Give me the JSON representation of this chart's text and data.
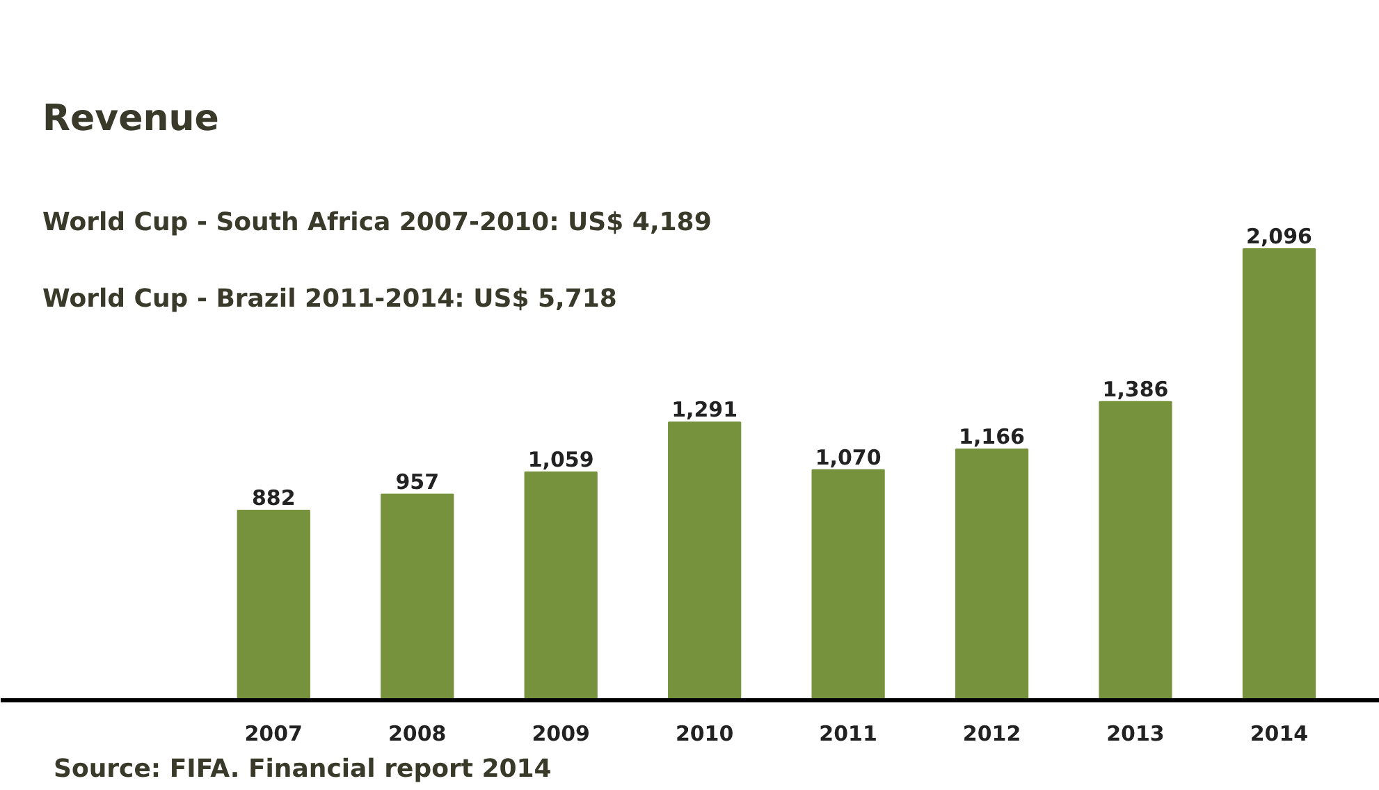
{
  "chart_data": {
    "type": "bar",
    "title": "Revenue",
    "annotations": [
      "World Cup - South Africa 2007-2010: US$ 4,189",
      "World Cup - Brazil 2011-2014: US$ 5,718",
      "Source: FIFA. Financial report 2014"
    ],
    "categories": [
      "2007",
      "2008",
      "2009",
      "2010",
      "2011",
      "2012",
      "2013",
      "2014"
    ],
    "values": [
      882,
      957,
      1059,
      1291,
      1070,
      1166,
      1386,
      2096
    ],
    "value_labels": [
      "882",
      "957",
      "1,059",
      "1,291",
      "1,070",
      "1,166",
      "1,386",
      "2,096"
    ],
    "color": "#76923c",
    "grid": false
  }
}
